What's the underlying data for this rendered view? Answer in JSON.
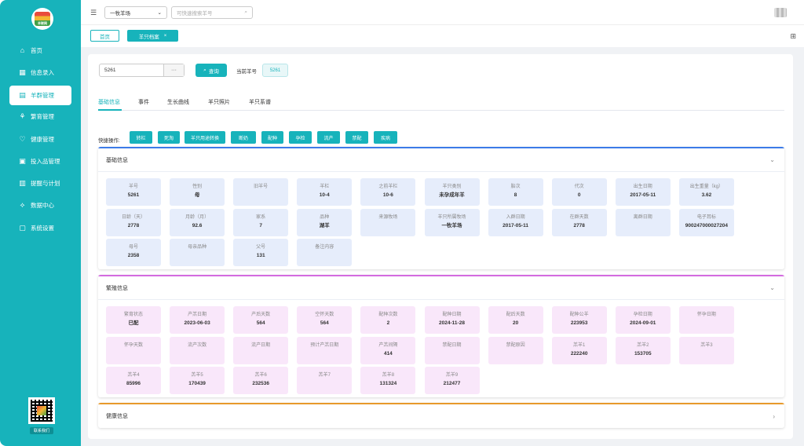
{
  "sidebar": {
    "logo_text": "羊联网",
    "items": [
      {
        "label": "首页",
        "icon": "home-icon",
        "glyph": "⌂"
      },
      {
        "label": "信息录入",
        "icon": "grid-icon",
        "glyph": "▦"
      },
      {
        "label": "羊群管理",
        "icon": "sheep-icon",
        "glyph": "▤"
      },
      {
        "label": "繁育管理",
        "icon": "breed-icon",
        "glyph": "⚘"
      },
      {
        "label": "健康管理",
        "icon": "heart-icon",
        "glyph": "♡"
      },
      {
        "label": "投入品管理",
        "icon": "box-icon",
        "glyph": "▣"
      },
      {
        "label": "提醒与计划",
        "icon": "calendar-icon",
        "glyph": "▥"
      },
      {
        "label": "数据中心",
        "icon": "chart-icon",
        "glyph": "⟡"
      },
      {
        "label": "系统设置",
        "icon": "settings-icon",
        "glyph": "▢"
      }
    ],
    "active_index": 2,
    "contact_label": "联系我们"
  },
  "topbar": {
    "farm_value": "一牧羊场",
    "search_placeholder": "可快速搜索羊号"
  },
  "tabbar": {
    "home_label": "首页",
    "active_label": "羊只档案",
    "close_glyph": "×"
  },
  "query": {
    "sheep_id": "5261",
    "more_label": "···",
    "query_label": "查询",
    "current_label": "当前羊号",
    "current_value": "5261"
  },
  "tabs": [
    "基础信息",
    "事件",
    "生长曲线",
    "羊只照片",
    "羊只系谱"
  ],
  "quick": {
    "label": "快捷操作:",
    "buttons": [
      "转栏",
      "死淘",
      "羊只用途转换",
      "断奶",
      "配种",
      "孕检",
      "流产",
      "禁配",
      "疾病"
    ]
  },
  "basic": {
    "title": "基础信息",
    "accent": "#3c7be8",
    "fields": [
      {
        "label": "羊号",
        "value": "5261"
      },
      {
        "label": "性别",
        "value": "母"
      },
      {
        "label": "旧羊号",
        "value": ""
      },
      {
        "label": "羊栏",
        "value": "10-4"
      },
      {
        "label": "之前羊栏",
        "value": "10-6"
      },
      {
        "label": "羊只类别",
        "value": "未孕成年羊"
      },
      {
        "label": "胎次",
        "value": "8"
      },
      {
        "label": "代次",
        "value": "0"
      },
      {
        "label": "出生日期",
        "value": "2017-05-11"
      },
      {
        "label": "出生重量（kg）",
        "value": "3.62"
      },
      {
        "label": "日龄（天）",
        "value": "2778"
      },
      {
        "label": "月龄（月）",
        "value": "92.6"
      },
      {
        "label": "家系",
        "value": "7"
      },
      {
        "label": "品种",
        "value": "湖羊"
      },
      {
        "label": "来源牧场",
        "value": ""
      },
      {
        "label": "羊只所属牧场",
        "value": "一牧羊场"
      },
      {
        "label": "入群日期",
        "value": "2017-05-11"
      },
      {
        "label": "在群天数",
        "value": "2778"
      },
      {
        "label": "离群日期",
        "value": ""
      },
      {
        "label": "电子耳标",
        "value": "900247000027204"
      },
      {
        "label": "母号",
        "value": "2358"
      },
      {
        "label": "母亲品种",
        "value": ""
      },
      {
        "label": "父号",
        "value": "131"
      },
      {
        "label": "备注内容",
        "value": ""
      }
    ]
  },
  "breed": {
    "title": "繁殖信息",
    "accent": "#d46be0",
    "fields": [
      {
        "label": "繁育状态",
        "value": "已配"
      },
      {
        "label": "产羔日期",
        "value": "2023-06-03"
      },
      {
        "label": "产后天数",
        "value": "564"
      },
      {
        "label": "空怀天数",
        "value": "564"
      },
      {
        "label": "配种次数",
        "value": "2"
      },
      {
        "label": "配种日期",
        "value": "2024-11-28"
      },
      {
        "label": "配后天数",
        "value": "20"
      },
      {
        "label": "配种公羊",
        "value": "223953"
      },
      {
        "label": "孕检日期",
        "value": "2024-09-01"
      },
      {
        "label": "怀孕日期",
        "value": ""
      },
      {
        "label": "怀孕天数",
        "value": ""
      },
      {
        "label": "流产次数",
        "value": ""
      },
      {
        "label": "流产日期",
        "value": ""
      },
      {
        "label": "预计产羔日期",
        "value": ""
      },
      {
        "label": "产羔间隔",
        "value": "414"
      },
      {
        "label": "禁配日期",
        "value": ""
      },
      {
        "label": "禁配原因",
        "value": ""
      },
      {
        "label": "羔羊1",
        "value": "222240"
      },
      {
        "label": "羔羊2",
        "value": "153705"
      },
      {
        "label": "羔羊3",
        "value": ""
      },
      {
        "label": "羔羊4",
        "value": "85996"
      },
      {
        "label": "羔羊5",
        "value": "170439"
      },
      {
        "label": "羔羊6",
        "value": "232536"
      },
      {
        "label": "羔羊7",
        "value": ""
      },
      {
        "label": "羔羊8",
        "value": "131324"
      },
      {
        "label": "羔羊9",
        "value": "212477"
      }
    ]
  },
  "health": {
    "title": "健康信息",
    "accent": "#e89a2c"
  }
}
